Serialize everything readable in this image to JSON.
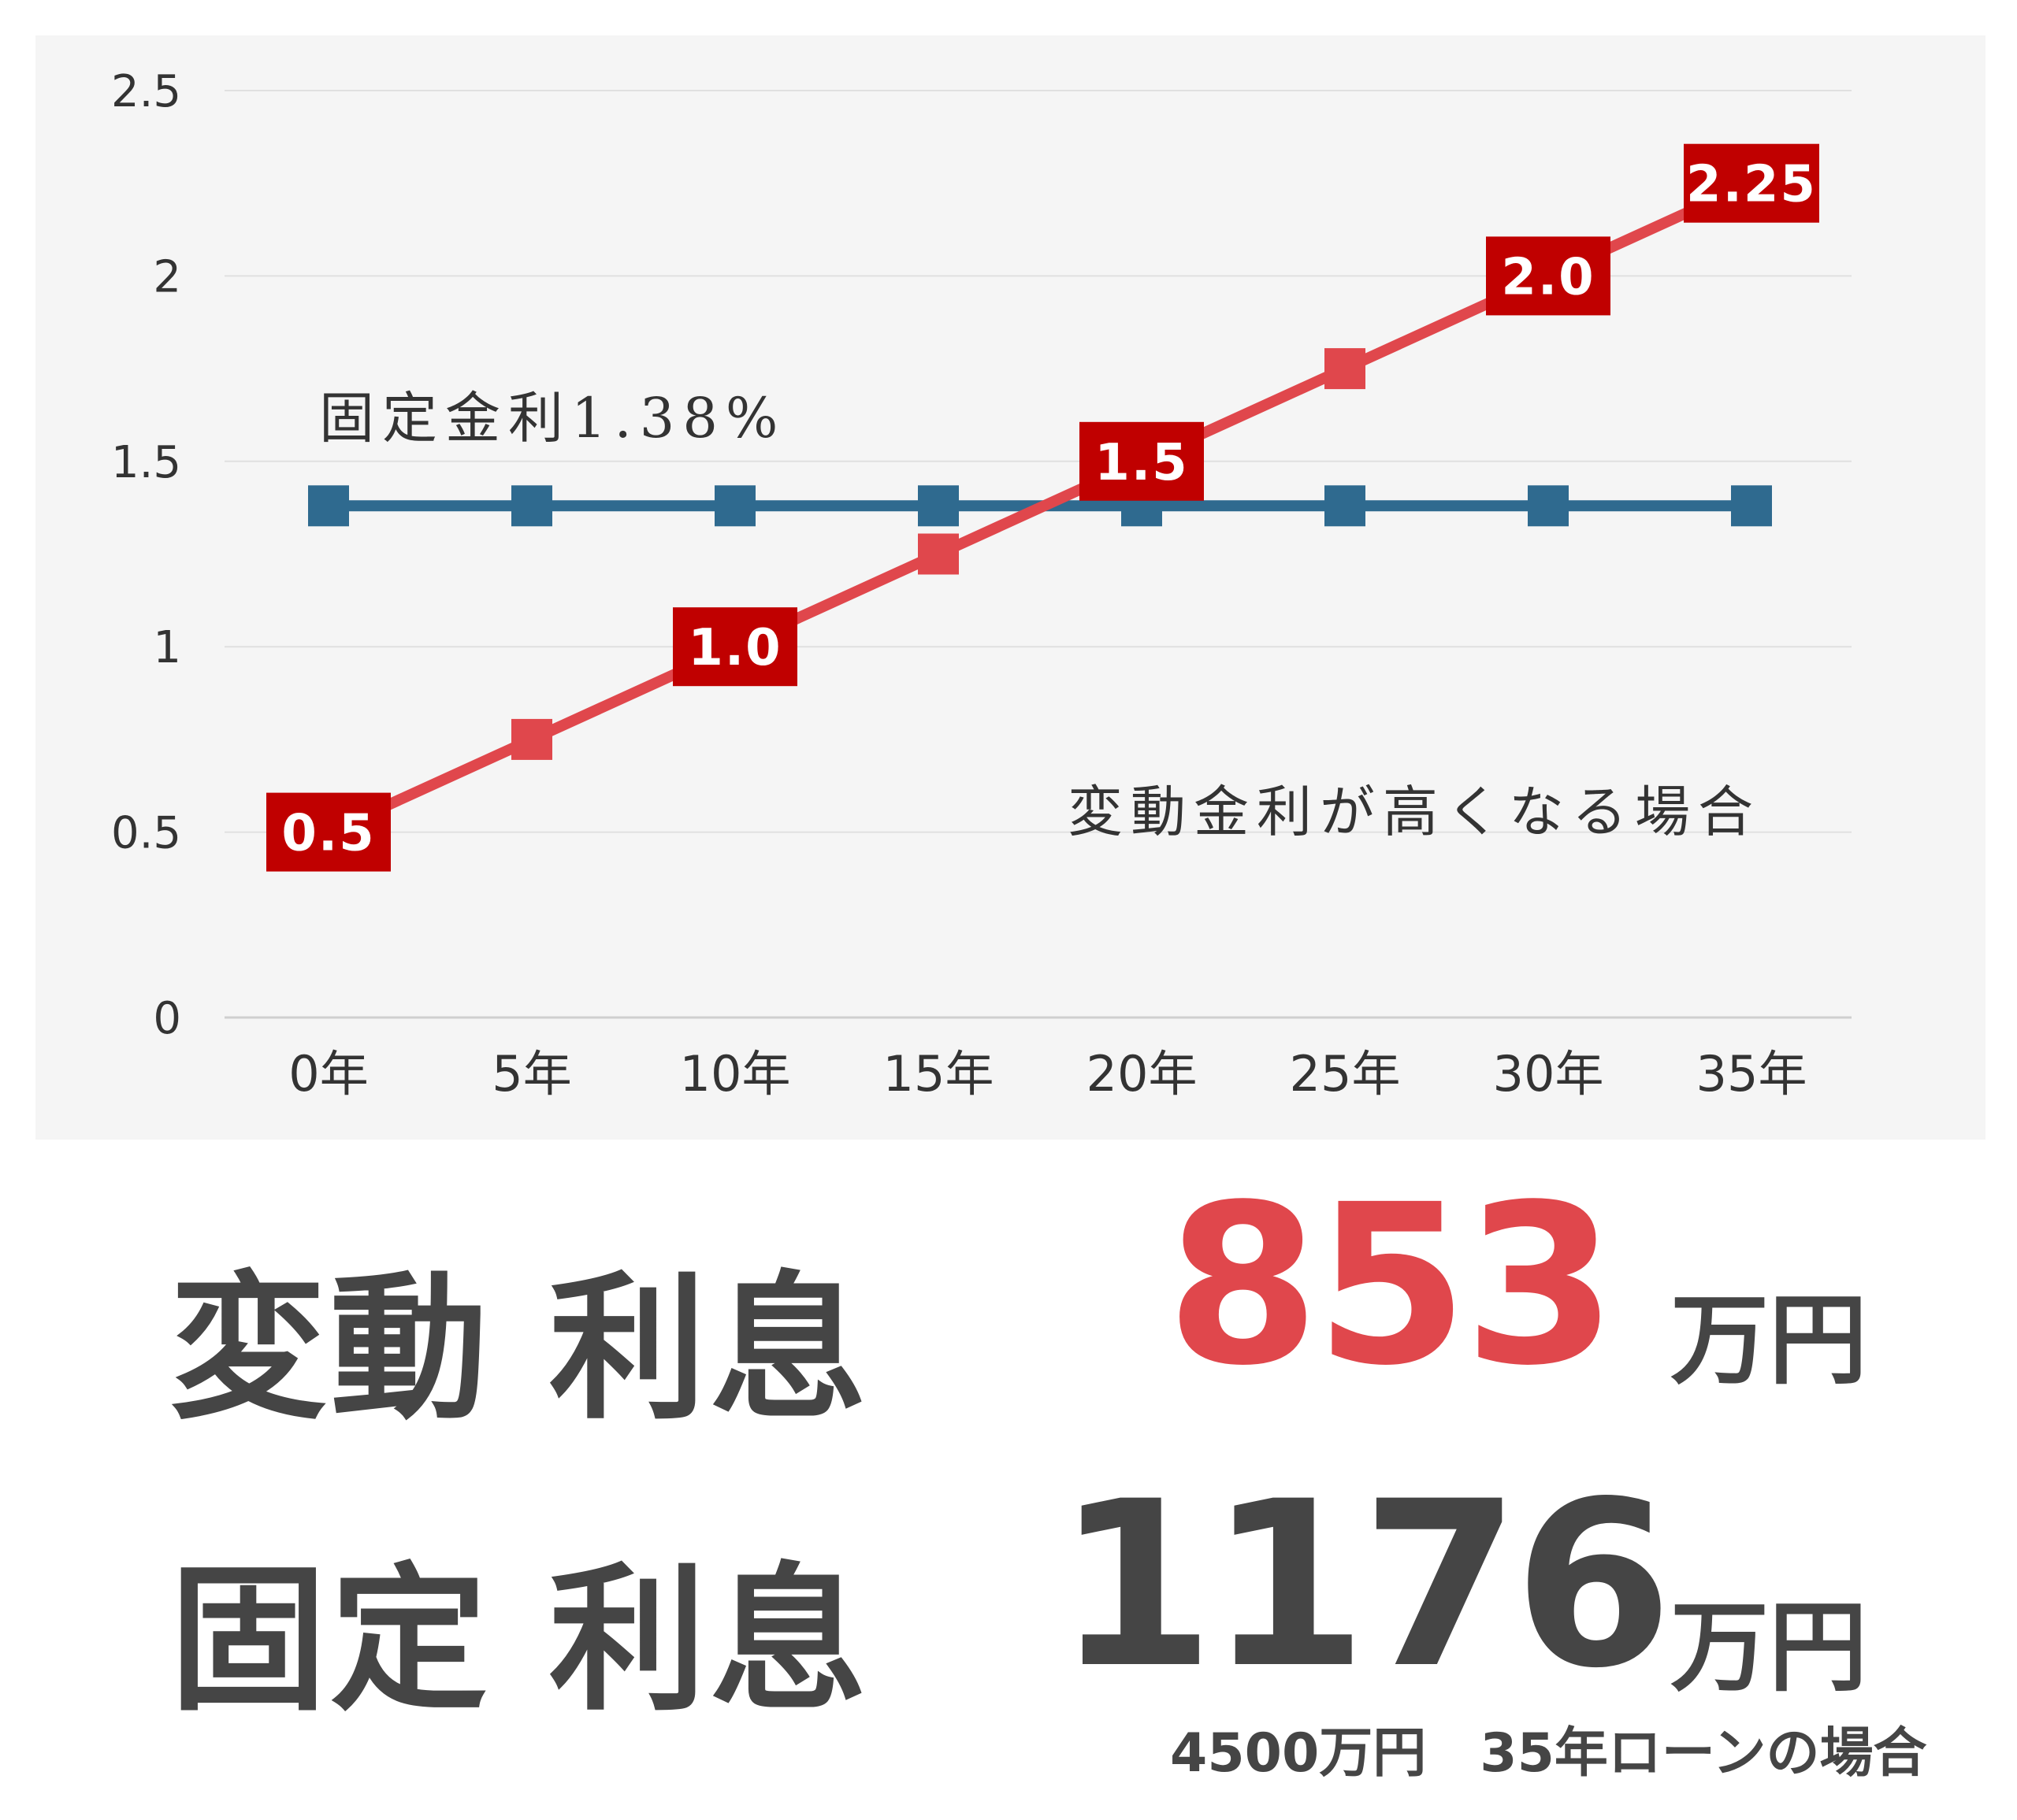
{
  "chart_data": {
    "type": "line",
    "categories": [
      "0年",
      "5年",
      "10年",
      "15年",
      "20年",
      "25年",
      "30年",
      "35年"
    ],
    "y_ticks": [
      "0",
      "0.5",
      "1",
      "1.5",
      "2",
      "2.5"
    ],
    "ylim": [
      0,
      2.5
    ],
    "grid": true,
    "series": [
      {
        "values": [
          1.38,
          1.38,
          1.38,
          1.38,
          1.38,
          1.38,
          1.38,
          1.38
        ],
        "color": "#2f6a8f",
        "marker": "square"
      },
      {
        "values": [
          0.5,
          0.75,
          1.0,
          1.25,
          1.5,
          1.75,
          2.0,
          2.25
        ],
        "color": "#e0474c",
        "marker": "square"
      }
    ],
    "data_labels": [
      {
        "index": 0,
        "text": "0.5"
      },
      {
        "index": 2,
        "text": "1.0"
      },
      {
        "index": 4,
        "text": "1.5"
      },
      {
        "index": 6,
        "text": "2.0"
      },
      {
        "index": 7,
        "text": "2.25"
      }
    ],
    "label_color": "#c00000",
    "annotations": {
      "fixed_rate": "固定金利1.38%",
      "variable_rate": "変動金利が高くなる場合"
    }
  },
  "summary": {
    "variable": {
      "label": "変動 利息",
      "value": "853",
      "unit": "万円"
    },
    "fixed": {
      "label": "固定 利息",
      "value": "1176",
      "unit": "万円"
    },
    "footnote": "4500万円　35年ローンの場合"
  }
}
